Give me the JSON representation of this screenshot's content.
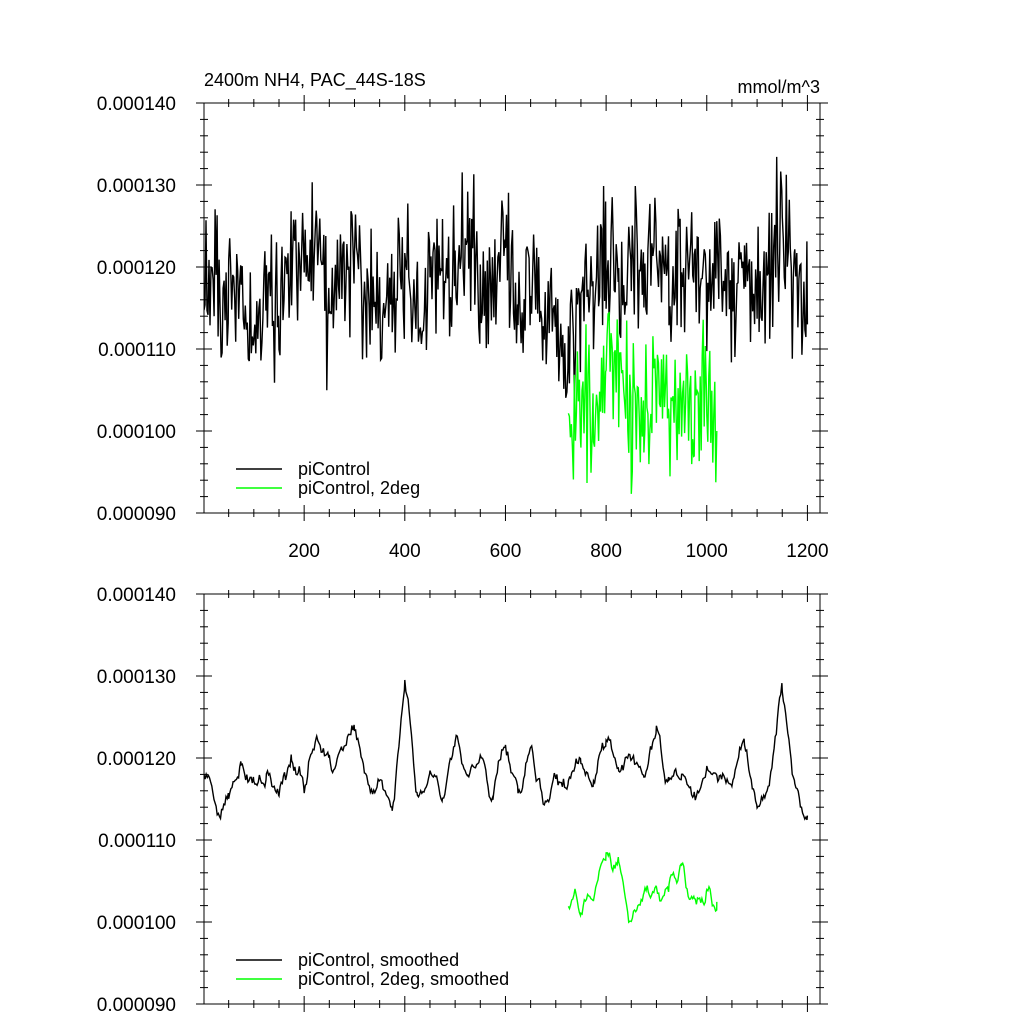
{
  "chart_data": [
    {
      "type": "line",
      "title": "2400m NH4, PAC_44S-18S",
      "units_label": "mmol/m^3",
      "xlim": [
        1,
        1225
      ],
      "ylim": [
        9e-05,
        0.00014
      ],
      "x_ticks": [
        200,
        400,
        600,
        800,
        1000,
        1200
      ],
      "x_tick_labels": [
        "200",
        "400",
        "600",
        "800",
        "1000",
        "1200"
      ],
      "y_ticks": [
        9e-05,
        0.0001,
        0.00011,
        0.00012,
        0.00013,
        0.00014
      ],
      "y_tick_labels": [
        "0.000090",
        "0.000100",
        "0.000110",
        "0.000120",
        "0.000130",
        "0.000140"
      ],
      "grid": false,
      "legend": "bottom-left",
      "series": [
        {
          "name": "piControl",
          "color": "#000000",
          "x": [
            1,
            25,
            50,
            75,
            100,
            125,
            150,
            175,
            200,
            225,
            250,
            275,
            300,
            325,
            350,
            375,
            400,
            425,
            450,
            475,
            500,
            525,
            550,
            575,
            600,
            625,
            650,
            675,
            700,
            725,
            750,
            775,
            800,
            825,
            850,
            875,
            900,
            925,
            950,
            975,
            1000,
            1025,
            1050,
            1075,
            1100,
            1125,
            1150,
            1175,
            1200
          ],
          "y": [
            0.000117,
            0.000121,
            0.000113,
            0.000118,
            0.000109,
            0.000117,
            0.000115,
            0.000119,
            0.00012,
            0.000125,
            0.000113,
            0.000122,
            0.000119,
            0.000117,
            0.000115,
            0.000117,
            0.00012,
            0.000111,
            0.000118,
            0.000121,
            0.000117,
            0.000124,
            0.000119,
            0.000117,
            0.000124,
            0.000113,
            0.000118,
            0.000116,
            0.000114,
            0.000112,
            0.000116,
            0.000117,
            0.00012,
            0.000118,
            0.000121,
            0.000117,
            0.000125,
            0.000118,
            0.00012,
            0.000119,
            0.000117,
            0.000121,
            0.000116,
            0.00012,
            0.000115,
            0.000118,
            0.000127,
            0.000116,
            0.000113
          ]
        },
        {
          "name": "piControl, 2deg",
          "color": "#00ff00",
          "x": [
            725,
            750,
            775,
            800,
            825,
            850,
            875,
            900,
            925,
            950,
            975,
            1000,
            1020
          ],
          "y": [
            0.000104,
            0.000102,
            0.000101,
            0.000111,
            0.000108,
            0.000102,
            0.000103,
            0.000104,
            0.000103,
            0.000106,
            0.000101,
            0.000104,
            0.0001
          ]
        }
      ]
    },
    {
      "type": "line",
      "xlim": [
        1,
        1225
      ],
      "ylim": [
        9e-05,
        0.00014
      ],
      "x_ticks": [
        200,
        400,
        600,
        800,
        1000,
        1200
      ],
      "y_ticks": [
        9e-05,
        0.0001,
        0.00011,
        0.00012,
        0.00013,
        0.00014
      ],
      "y_tick_labels": [
        "0.000090",
        "0.000100",
        "0.000110",
        "0.000120",
        "0.000130",
        "0.000140"
      ],
      "grid": false,
      "legend": "bottom-left",
      "series": [
        {
          "name": "piControl, smoothed",
          "color": "#000000",
          "x": [
            1,
            25,
            50,
            75,
            100,
            125,
            150,
            175,
            200,
            225,
            250,
            275,
            300,
            325,
            350,
            375,
            400,
            425,
            450,
            475,
            500,
            525,
            550,
            575,
            600,
            625,
            650,
            675,
            700,
            725,
            750,
            775,
            800,
            825,
            850,
            875,
            900,
            925,
            950,
            975,
            1000,
            1025,
            1050,
            1075,
            1100,
            1125,
            1150,
            1175,
            1200
          ],
          "y": [
            0.000118,
            0.000114,
            0.000115,
            0.000119,
            0.000117,
            0.000118,
            0.000116,
            0.00012,
            0.000117,
            0.000124,
            0.000118,
            0.000121,
            0.000124,
            0.000116,
            0.000117,
            0.000113,
            0.000131,
            0.000115,
            0.000119,
            0.000116,
            0.000123,
            0.000117,
            0.000121,
            0.000116,
            0.000122,
            0.000116,
            0.000121,
            0.000115,
            0.000117,
            0.000116,
            0.00012,
            0.000117,
            0.000123,
            0.000118,
            0.00012,
            0.000118,
            0.000123,
            0.000117,
            0.000119,
            0.000115,
            0.000119,
            0.000118,
            0.000116,
            0.000121,
            0.000114,
            0.000117,
            0.000128,
            0.000117,
            0.000113
          ]
        },
        {
          "name": "piControl, 2deg, smoothed",
          "color": "#00ff00",
          "x": [
            725,
            750,
            775,
            800,
            825,
            850,
            875,
            900,
            925,
            950,
            975,
            1000,
            1020
          ],
          "y": [
            0.000104,
            0.000102,
            0.000103,
            0.000108,
            0.000106,
            0.000101,
            0.000104,
            0.000103,
            0.000104,
            0.000107,
            0.000102,
            0.000104,
            0.000101
          ]
        }
      ]
    }
  ]
}
